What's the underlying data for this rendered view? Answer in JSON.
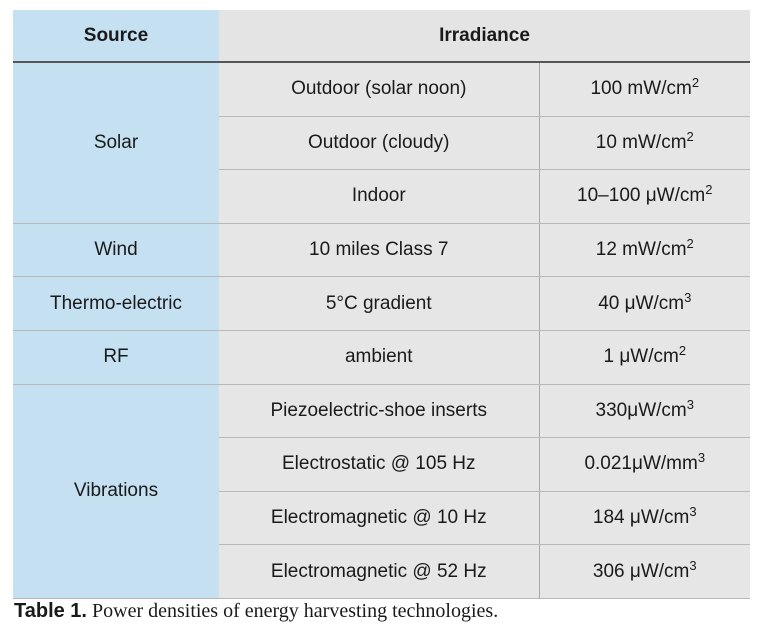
{
  "table": {
    "headers": {
      "source": "Source",
      "irradiance": "Irradiance"
    },
    "rows": [
      {
        "source": "Solar",
        "condition": "Outdoor (solar noon)",
        "value": "100 mW/cm",
        "exp": "2"
      },
      {
        "condition": "Outdoor (cloudy)",
        "value": "10 mW/cm",
        "exp": "2"
      },
      {
        "condition": "Indoor",
        "value": "10–100 μW/cm",
        "exp": "2"
      },
      {
        "source": "Wind",
        "condition": "10 miles Class 7",
        "value": "12 mW/cm",
        "exp": "2"
      },
      {
        "source": "Thermo-electric",
        "condition": "5°C gradient",
        "value": "40 μW/cm",
        "exp": "3"
      },
      {
        "source": "RF",
        "condition": "ambient",
        "value": "1 μW/cm",
        "exp": "2"
      },
      {
        "source": "Vibrations",
        "condition": "Piezoelectric-shoe inserts",
        "value": "330μW/cm",
        "exp": "3"
      },
      {
        "condition": "Electrostatic @ 105 Hz",
        "value": "0.021μW/mm",
        "exp": "3"
      },
      {
        "condition": "Electromagnetic @ 10 Hz",
        "value": "184 μW/cm",
        "exp": "3"
      },
      {
        "condition": "Electromagnetic @ 52 Hz",
        "value": "306 μW/cm",
        "exp": "3"
      }
    ]
  },
  "caption": {
    "label": "Table 1.",
    "text": " Power densities of energy harvesting technologies."
  },
  "colors": {
    "source_column_bg": "#c5e0f1",
    "cell_bg": "#e6e6e6"
  }
}
